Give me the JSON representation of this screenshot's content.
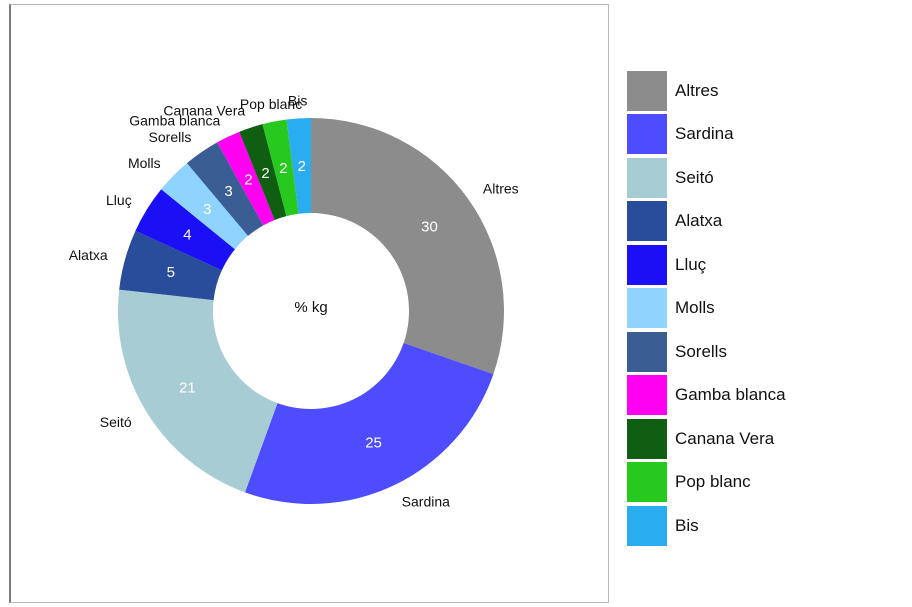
{
  "chart_data": {
    "type": "donut",
    "center_label": "% kg",
    "categories": [
      "Altres",
      "Sardina",
      "Seitó",
      "Alatxa",
      "Lluç",
      "Molls",
      "Sorells",
      "Gamba blanca",
      "Canana Vera",
      "Pop blanc",
      "Bis"
    ],
    "values": [
      30,
      25,
      21,
      5,
      4,
      3,
      3,
      2,
      2,
      2,
      2
    ],
    "colors": [
      "#8c8c8c",
      "#4d4dff",
      "#a8ccd4",
      "#2a4d9b",
      "#1a0ff5",
      "#8fd3ff",
      "#3a5e94",
      "#ff00f0",
      "#0f5e12",
      "#28c91e",
      "#2aacf0"
    ],
    "label_colors": [
      "#ffffff",
      "#ffffff",
      "#ffffff",
      "#ffffff",
      "#ffffff",
      "#ffffff",
      "#ffffff",
      "#ffffff",
      "#ffffff",
      "#ffffff",
      "#ffffff"
    ],
    "legend_position": "right"
  }
}
